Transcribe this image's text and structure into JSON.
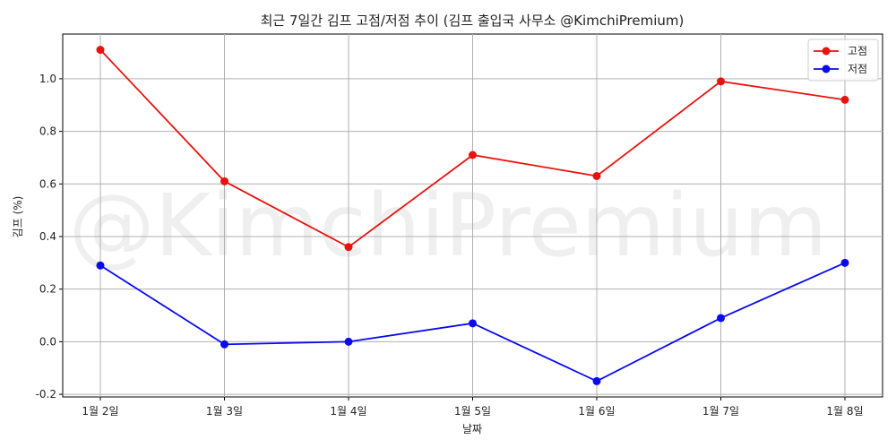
{
  "watermark": "@KimchiPremium",
  "chart_data": {
    "type": "line",
    "title": "최근 7일간 김프 고점/저점 추이 (김프 출입국 사무소 @KimchiPremium)",
    "xlabel": "날짜",
    "ylabel": "김프 (%)",
    "categories": [
      "1월 2일",
      "1월 3일",
      "1월 4일",
      "1월 5일",
      "1월 6일",
      "1월 7일",
      "1월 8일"
    ],
    "ylim": [
      -0.21,
      1.17
    ],
    "yticks": [
      -0.2,
      0.0,
      0.2,
      0.4,
      0.6,
      0.8,
      1.0
    ],
    "ytick_labels": [
      "-0.2",
      "0.0",
      "0.2",
      "0.4",
      "0.6",
      "0.8",
      "1.0"
    ],
    "grid": true,
    "legend_position": "top-right",
    "series": [
      {
        "name": "고점",
        "color": "#e8130f",
        "values": [
          1.11,
          0.61,
          0.36,
          0.71,
          0.63,
          0.99,
          0.92
        ]
      },
      {
        "name": "저점",
        "color": "#0a0af0",
        "values": [
          0.29,
          -0.01,
          0.0,
          0.07,
          -0.15,
          0.09,
          0.3
        ]
      }
    ]
  }
}
